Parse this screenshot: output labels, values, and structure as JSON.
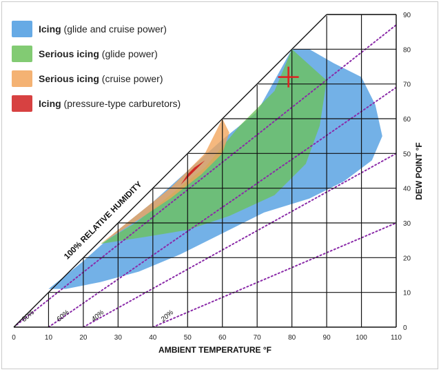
{
  "chart_data": {
    "type": "area",
    "xlabel": "AMBIENT TEMPERATURE  °F",
    "ylabel": "DEW POINT  °F",
    "xlim": [
      0,
      110
    ],
    "ylim": [
      0,
      90
    ],
    "x_ticks": [
      "0",
      "10",
      "20",
      "30",
      "40",
      "50",
      "60",
      "70",
      "80",
      "90",
      "100",
      "110"
    ],
    "y_ticks": [
      "0",
      "10",
      "20",
      "30",
      "40",
      "50",
      "60",
      "70",
      "80",
      "90"
    ],
    "grid": true,
    "saturation_line_label": "100% RELATIVE HUMIDITY",
    "humidity_lines": [
      {
        "label": "80%",
        "points": [
          [
            0,
            0
          ],
          [
            110,
            87
          ]
        ]
      },
      {
        "label": "60%",
        "points": [
          [
            10,
            0
          ],
          [
            110,
            69
          ]
        ]
      },
      {
        "label": "40%",
        "points": [
          [
            20,
            0
          ],
          [
            110,
            50
          ]
        ]
      },
      {
        "label": "20%",
        "points": [
          [
            40,
            0
          ],
          [
            110,
            30
          ]
        ]
      }
    ],
    "series": [
      {
        "name": "Icing (glide and cruise power)",
        "color": "#4b9be0",
        "points": [
          [
            10,
            11
          ],
          [
            20,
            19
          ],
          [
            30,
            28
          ],
          [
            40,
            36
          ],
          [
            50,
            45
          ],
          [
            60,
            54
          ],
          [
            70,
            62
          ],
          [
            80,
            80
          ],
          [
            85,
            80
          ],
          [
            92,
            76
          ],
          [
            100,
            72
          ],
          [
            104,
            64
          ],
          [
            106,
            55
          ],
          [
            103,
            48
          ],
          [
            95,
            42
          ],
          [
            85,
            37
          ],
          [
            72,
            33
          ],
          [
            60,
            27
          ],
          [
            48,
            21
          ],
          [
            36,
            16
          ],
          [
            25,
            13
          ],
          [
            15,
            11
          ]
        ]
      },
      {
        "name": "Serious icing (glide power)",
        "color": "#6cc25a",
        "points": [
          [
            25,
            24
          ],
          [
            35,
            30
          ],
          [
            45,
            38
          ],
          [
            55,
            46
          ],
          [
            65,
            58
          ],
          [
            75,
            68
          ],
          [
            80,
            80
          ],
          [
            90,
            71
          ],
          [
            88,
            58
          ],
          [
            84,
            47
          ],
          [
            75,
            38
          ],
          [
            62,
            32
          ],
          [
            50,
            28
          ],
          [
            38,
            26
          ]
        ]
      },
      {
        "name": "Serious icing (cruise power)",
        "color": "#f2a45a",
        "points": [
          [
            25,
            24
          ],
          [
            35,
            32
          ],
          [
            45,
            40
          ],
          [
            55,
            50
          ],
          [
            60,
            60
          ],
          [
            62,
            56
          ],
          [
            60,
            50
          ],
          [
            54,
            44
          ],
          [
            45,
            37
          ],
          [
            36,
            31
          ]
        ]
      },
      {
        "name": "Icing (pressure-type carburetors)",
        "color": "#d02020",
        "points": [
          [
            48,
            41
          ],
          [
            51,
            44
          ],
          [
            55,
            48
          ],
          [
            52,
            46
          ],
          [
            50,
            44
          ]
        ]
      }
    ],
    "marker": {
      "type": "cross",
      "x": 79,
      "y": 72,
      "color": "#e02020"
    }
  },
  "legend": [
    {
      "bold": "Icing",
      "rest": " (glide and cruise power)",
      "color": "#4b9be0"
    },
    {
      "bold": "Serious icing",
      "rest": " (glide power)",
      "color": "#6cc25a"
    },
    {
      "bold": "Serious icing",
      "rest": " (cruise power)",
      "color": "#f2a45a"
    },
    {
      "bold": "Icing",
      "rest": " (pressure-type carburetors)",
      "color": "#d02020"
    }
  ]
}
